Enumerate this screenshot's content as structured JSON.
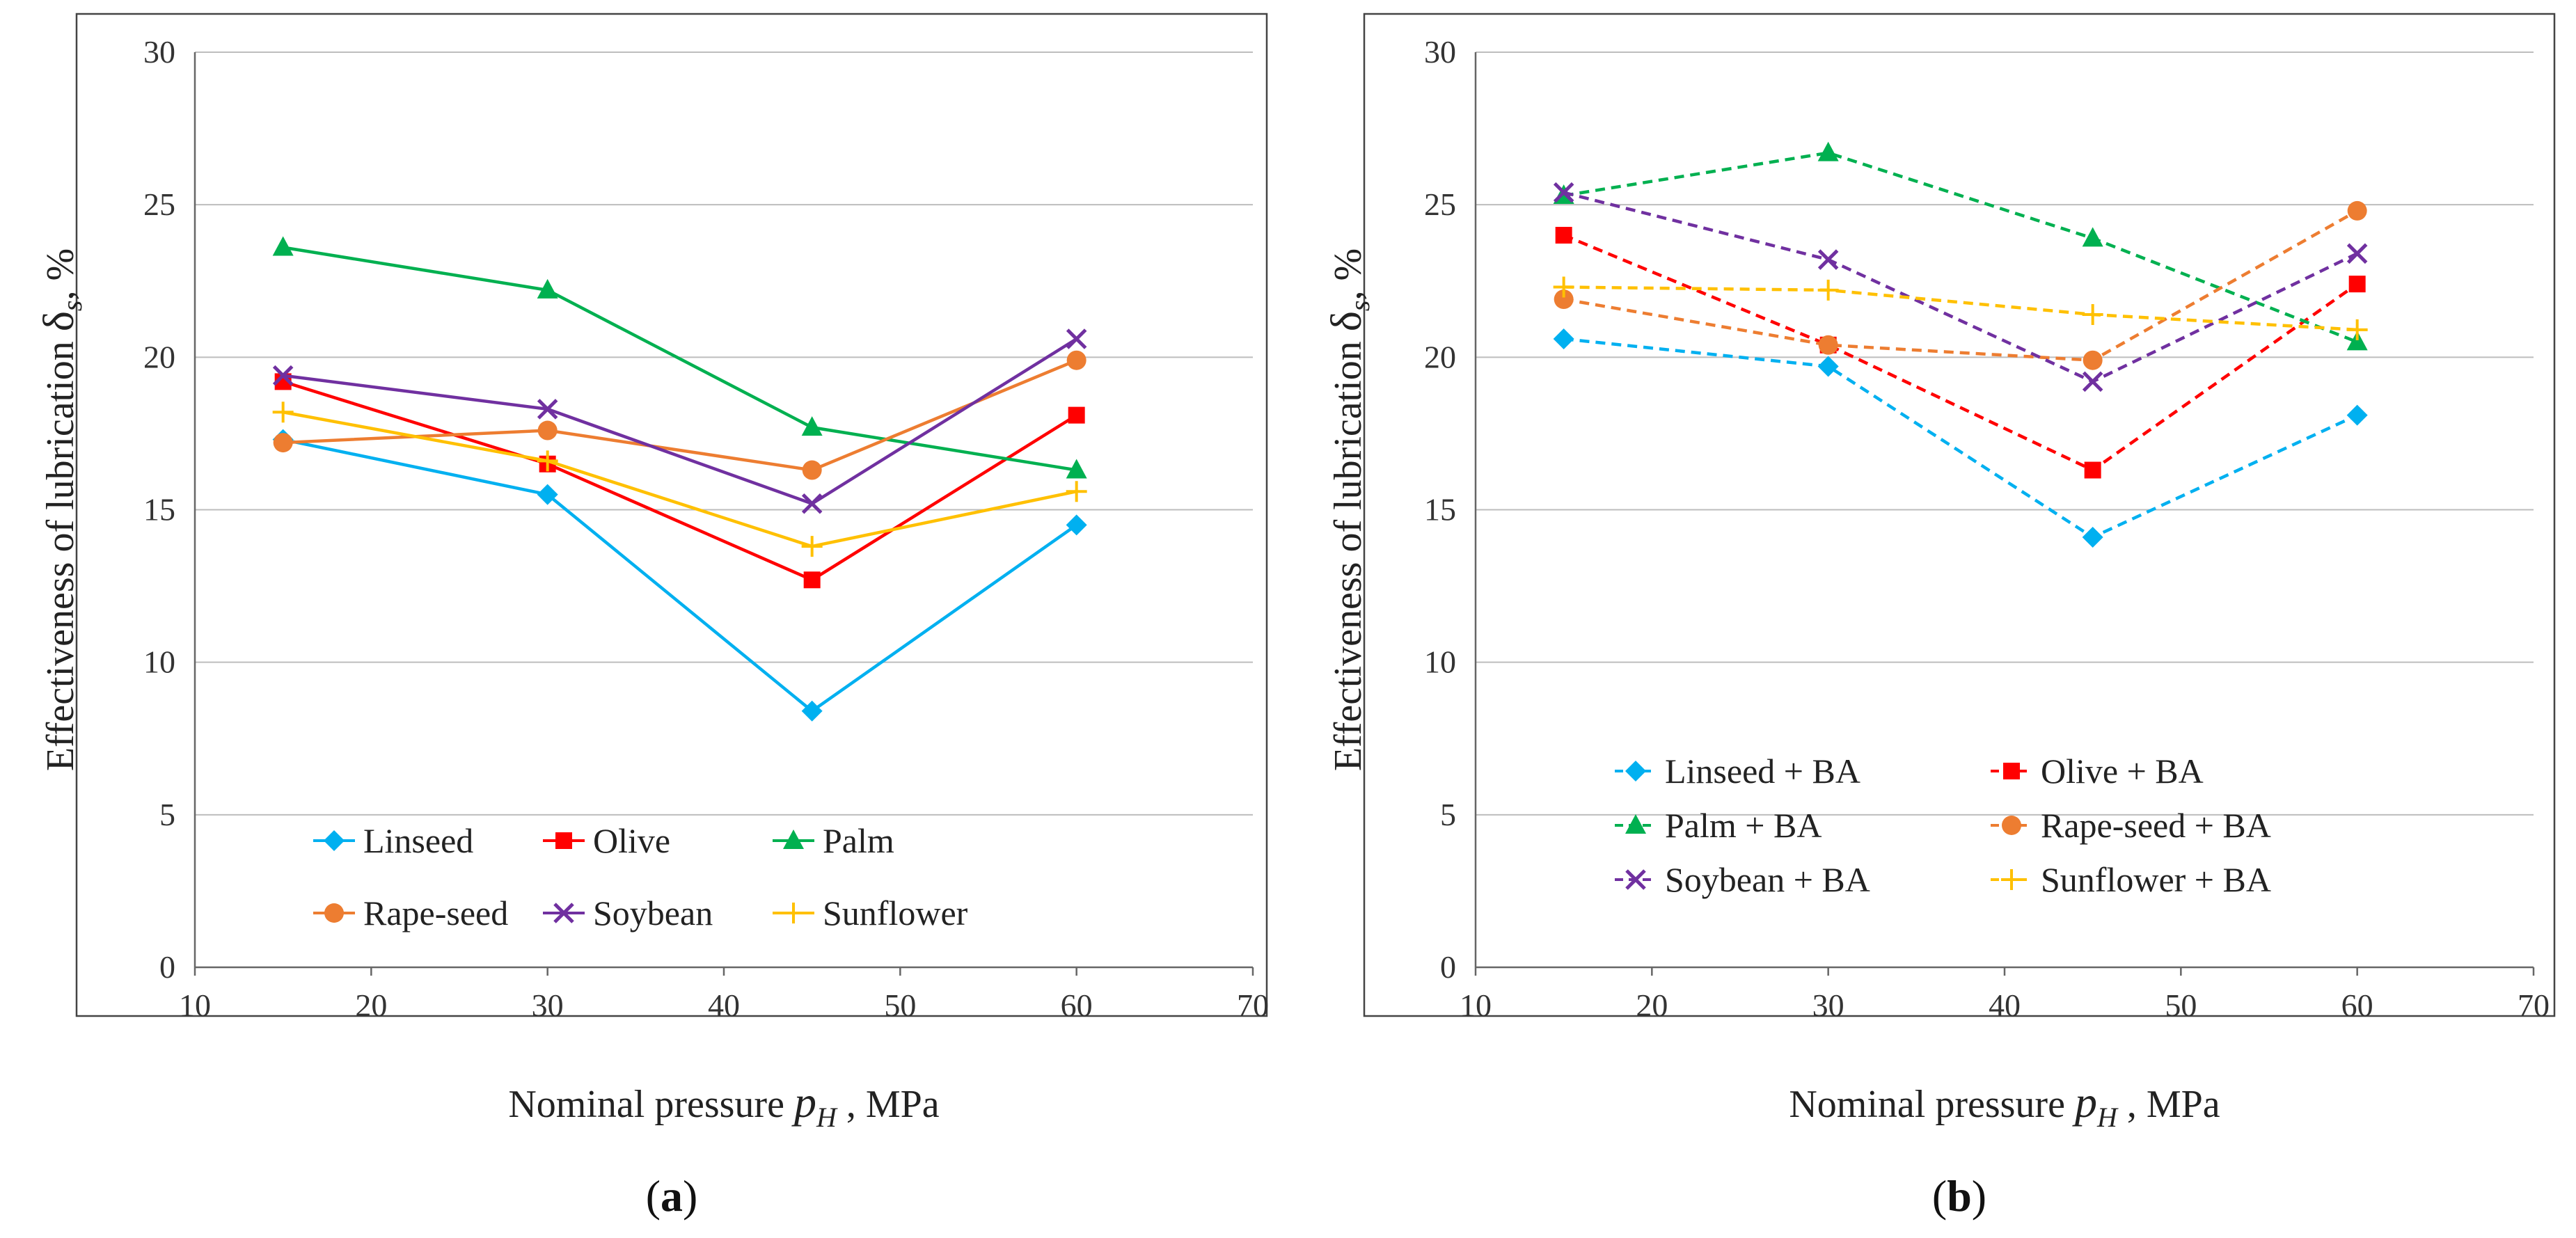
{
  "chart_data": [
    {
      "type": "line",
      "panel_label": "(a)",
      "line_style": "solid",
      "xlabel": "Nominal pressure p_H , MPa",
      "xlabel_prefix": "Nominal pressure ",
      "xlabel_var": "p",
      "xlabel_sub": "H",
      "xlabel_suffix": " , MPa",
      "ylabel": "Effectiveness of lubrication δs, %",
      "ylabel_prefix": "Effectiveness of lubrication ",
      "ylabel_var": "δ",
      "ylabel_sub": "s",
      "ylabel_suffix": ", %",
      "xlim": [
        10,
        70
      ],
      "ylim": [
        0,
        30
      ],
      "xticks": [
        "10",
        "20",
        "30",
        "40",
        "50",
        "60",
        "70"
      ],
      "yticks": [
        "0",
        "5",
        "10",
        "15",
        "20",
        "25",
        "30"
      ],
      "grid": true,
      "legend_position": "bottom-center",
      "x": [
        15,
        30,
        45,
        60
      ],
      "series": [
        {
          "name": "Linseed",
          "values": [
            17.3,
            15.5,
            8.4,
            14.5
          ],
          "color": "#00b0f0",
          "marker": "diamond"
        },
        {
          "name": "Olive",
          "values": [
            19.2,
            16.5,
            12.7,
            18.1
          ],
          "color": "#ff0000",
          "marker": "square"
        },
        {
          "name": "Palm",
          "values": [
            23.6,
            22.2,
            17.7,
            16.3
          ],
          "color": "#00b050",
          "marker": "triangle"
        },
        {
          "name": "Rape-seed",
          "values": [
            17.2,
            17.6,
            16.3,
            19.9
          ],
          "color": "#ed7d31",
          "marker": "circle"
        },
        {
          "name": "Soybean",
          "values": [
            19.4,
            18.3,
            15.2,
            20.6
          ],
          "color": "#7030a0",
          "marker": "x"
        },
        {
          "name": "Sunflower",
          "values": [
            18.2,
            16.6,
            13.8,
            15.6
          ],
          "color": "#ffc000",
          "marker": "plus"
        }
      ]
    },
    {
      "type": "line",
      "panel_label": "(b)",
      "line_style": "dashed",
      "xlabel": "Nominal pressure p_H , MPa",
      "xlabel_prefix": "Nominal pressure ",
      "xlabel_var": "p",
      "xlabel_sub": "H",
      "xlabel_suffix": " , MPa",
      "ylabel": "Effectiveness of lubrication δs, %",
      "ylabel_prefix": "Effectiveness of lubrication ",
      "ylabel_var": "δ",
      "ylabel_sub": "s",
      "ylabel_suffix": ", %",
      "xlim": [
        10,
        70
      ],
      "ylim": [
        0,
        30
      ],
      "xticks": [
        "10",
        "20",
        "30",
        "40",
        "50",
        "60",
        "70"
      ],
      "yticks": [
        "0",
        "5",
        "10",
        "15",
        "20",
        "25",
        "30"
      ],
      "grid": true,
      "legend_position": "bottom-center",
      "x": [
        15,
        30,
        45,
        60
      ],
      "series": [
        {
          "name": "Linseed + BA",
          "values": [
            20.6,
            19.7,
            14.1,
            18.1
          ],
          "color": "#00b0f0",
          "marker": "diamond"
        },
        {
          "name": "Olive + BA",
          "values": [
            24.0,
            20.4,
            16.3,
            22.4
          ],
          "color": "#ff0000",
          "marker": "square"
        },
        {
          "name": "Palm + BA",
          "values": [
            25.3,
            26.7,
            23.9,
            20.5
          ],
          "color": "#00b050",
          "marker": "triangle"
        },
        {
          "name": "Rape-seed + BA",
          "values": [
            21.9,
            20.4,
            19.9,
            24.8
          ],
          "color": "#ed7d31",
          "marker": "circle"
        },
        {
          "name": "Soybean + BA",
          "values": [
            25.4,
            23.2,
            19.2,
            23.4
          ],
          "color": "#7030a0",
          "marker": "x"
        },
        {
          "name": "Sunflower + BA",
          "values": [
            22.3,
            22.2,
            21.4,
            20.9
          ],
          "color": "#ffc000",
          "marker": "plus"
        }
      ]
    }
  ]
}
